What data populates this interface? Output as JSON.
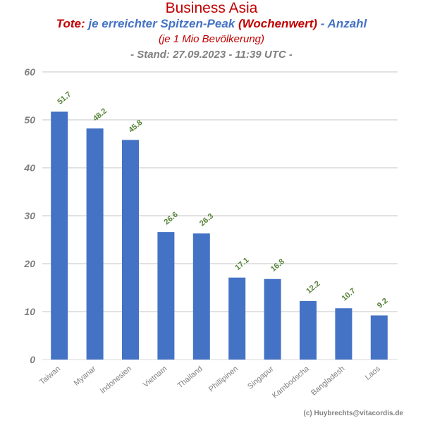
{
  "header": {
    "title": "Business Asia",
    "subtitle_parts": [
      {
        "text": "Tote:",
        "color": "#c00000"
      },
      {
        "text": "je erreichter Spitzen-Peak",
        "color": "#4472c4"
      },
      {
        "text": "(Wochenwert)",
        "color": "#c00000"
      },
      {
        "text": "- Anzahl",
        "color": "#4472c4"
      }
    ],
    "subtitle2": "(je 1 Mio Bevölkerung)",
    "stand": "- Stand: 27.09.2023 - 11:39 UTC -"
  },
  "footer": {
    "credit": "(c) Huybrechts@vitacordis.de"
  },
  "chart_data": {
    "type": "bar",
    "categories": [
      "Taiwan",
      "Myanar",
      "Indonesien",
      "Vietnam",
      "Thailand",
      "Phillipinen",
      "Singapur",
      "Kambodscha",
      "Bangladesh",
      "Laos"
    ],
    "values": [
      51.7,
      48.2,
      45.8,
      26.6,
      26.3,
      17.1,
      16.8,
      12.2,
      10.7,
      9.2
    ],
    "value_labels": [
      "51.7",
      "48.2",
      "45.8",
      "26.6",
      "26.3",
      "17.1",
      "16.8",
      "12.2",
      "10.7",
      "9.2"
    ],
    "yticks": [
      "0",
      "10",
      "20",
      "30",
      "40",
      "50",
      "60"
    ],
    "ylim": [
      0,
      60
    ],
    "grid": true,
    "colors": {
      "bar": "#4472c4",
      "label": "#548235",
      "grid": "#d9d9d9",
      "tick": "#808080"
    }
  }
}
